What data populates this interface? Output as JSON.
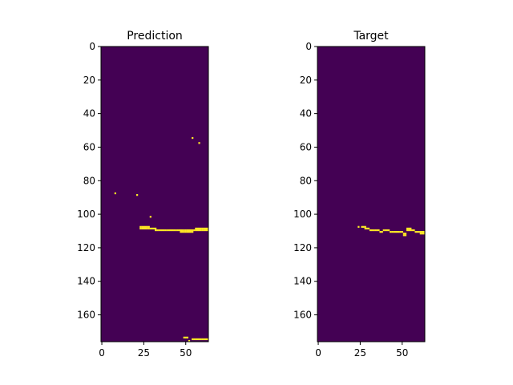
{
  "chart_data": [
    {
      "type": "heatmap",
      "title": "Prediction",
      "xlabel": "",
      "ylabel": "",
      "xlim": [
        0,
        64
      ],
      "ylim": [
        176,
        0
      ],
      "xticks": [
        0,
        25,
        50
      ],
      "yticks": [
        0,
        20,
        40,
        60,
        80,
        100,
        120,
        140,
        160
      ],
      "background_color": "#440154",
      "foreground_color": "#fde725",
      "colorscale": "viridis",
      "active_cells": [
        [
          54,
          54
        ],
        [
          58,
          57
        ],
        [
          8,
          87
        ],
        [
          21,
          88
        ],
        [
          29,
          101
        ],
        [
          23,
          107
        ],
        [
          24,
          107
        ],
        [
          25,
          107
        ],
        [
          26,
          107
        ],
        [
          27,
          107
        ],
        [
          28,
          107
        ],
        [
          23,
          108
        ],
        [
          24,
          108
        ],
        [
          25,
          108
        ],
        [
          26,
          108
        ],
        [
          27,
          108
        ],
        [
          28,
          108
        ],
        [
          29,
          108
        ],
        [
          30,
          108
        ],
        [
          31,
          108
        ],
        [
          32,
          109
        ],
        [
          33,
          109
        ],
        [
          34,
          109
        ],
        [
          35,
          109
        ],
        [
          36,
          109
        ],
        [
          37,
          109
        ],
        [
          38,
          109
        ],
        [
          39,
          109
        ],
        [
          40,
          109
        ],
        [
          41,
          109
        ],
        [
          42,
          109
        ],
        [
          43,
          109
        ],
        [
          44,
          109
        ],
        [
          45,
          109
        ],
        [
          46,
          109
        ],
        [
          47,
          109
        ],
        [
          48,
          109
        ],
        [
          49,
          109
        ],
        [
          50,
          109
        ],
        [
          51,
          109
        ],
        [
          52,
          109
        ],
        [
          53,
          109
        ],
        [
          54,
          109
        ],
        [
          55,
          109
        ],
        [
          56,
          109
        ],
        [
          57,
          109
        ],
        [
          58,
          109
        ],
        [
          59,
          109
        ],
        [
          60,
          109
        ],
        [
          61,
          109
        ],
        [
          62,
          109
        ],
        [
          63,
          109
        ],
        [
          32,
          108
        ],
        [
          56,
          108
        ],
        [
          57,
          108
        ],
        [
          58,
          108
        ],
        [
          59,
          108
        ],
        [
          60,
          108
        ],
        [
          61,
          108
        ],
        [
          62,
          108
        ],
        [
          63,
          108
        ],
        [
          47,
          110
        ],
        [
          48,
          110
        ],
        [
          49,
          110
        ],
        [
          50,
          110
        ],
        [
          51,
          110
        ],
        [
          52,
          110
        ],
        [
          53,
          110
        ],
        [
          54,
          110
        ],
        [
          49,
          173
        ],
        [
          50,
          173
        ],
        [
          51,
          173
        ],
        [
          54,
          174
        ],
        [
          55,
          174
        ],
        [
          56,
          174
        ],
        [
          57,
          174
        ],
        [
          58,
          174
        ],
        [
          59,
          174
        ],
        [
          60,
          174
        ],
        [
          61,
          174
        ],
        [
          62,
          174
        ],
        [
          63,
          174
        ],
        [
          52,
          175
        ]
      ]
    },
    {
      "type": "heatmap",
      "title": "Target",
      "xlabel": "",
      "ylabel": "",
      "xlim": [
        0,
        64
      ],
      "ylim": [
        176,
        0
      ],
      "xticks": [
        0,
        25,
        50
      ],
      "yticks": [
        0,
        20,
        40,
        60,
        80,
        100,
        120,
        140,
        160
      ],
      "background_color": "#440154",
      "foreground_color": "#fde725",
      "colorscale": "viridis",
      "active_cells": [
        [
          24,
          107
        ],
        [
          26,
          107
        ],
        [
          27,
          107
        ],
        [
          28,
          107
        ],
        [
          28,
          108
        ],
        [
          29,
          108
        ],
        [
          30,
          108
        ],
        [
          31,
          109
        ],
        [
          32,
          109
        ],
        [
          33,
          109
        ],
        [
          34,
          109
        ],
        [
          35,
          109
        ],
        [
          36,
          109
        ],
        [
          37,
          110
        ],
        [
          38,
          110
        ],
        [
          39,
          109
        ],
        [
          40,
          109
        ],
        [
          41,
          109
        ],
        [
          42,
          109
        ],
        [
          43,
          110
        ],
        [
          44,
          110
        ],
        [
          45,
          110
        ],
        [
          46,
          110
        ],
        [
          47,
          110
        ],
        [
          48,
          110
        ],
        [
          49,
          110
        ],
        [
          50,
          110
        ],
        [
          51,
          111
        ],
        [
          52,
          111
        ],
        [
          53,
          108
        ],
        [
          54,
          108
        ],
        [
          55,
          108
        ],
        [
          53,
          109
        ],
        [
          54,
          109
        ],
        [
          55,
          109
        ],
        [
          56,
          109
        ],
        [
          57,
          109
        ],
        [
          58,
          110
        ],
        [
          59,
          110
        ],
        [
          60,
          110
        ],
        [
          61,
          110
        ],
        [
          62,
          110
        ],
        [
          63,
          110
        ],
        [
          61,
          111
        ],
        [
          62,
          111
        ],
        [
          63,
          111
        ],
        [
          51,
          112
        ],
        [
          52,
          112
        ]
      ]
    }
  ]
}
